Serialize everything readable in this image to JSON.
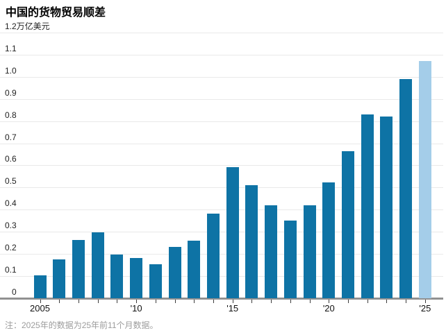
{
  "header": {
    "title": "中国的货物贸易顺差"
  },
  "chart_data": {
    "type": "bar",
    "title": "中国的货物贸易顺差",
    "y_top_label": "1.2万亿美元",
    "unit": "万亿美元",
    "categories": [
      2005,
      2006,
      2007,
      2008,
      2009,
      2010,
      2011,
      2012,
      2013,
      2014,
      2015,
      2016,
      2017,
      2018,
      2019,
      2020,
      2021,
      2022,
      2023,
      2024,
      2025
    ],
    "values": [
      0.102,
      0.177,
      0.264,
      0.298,
      0.196,
      0.182,
      0.155,
      0.231,
      0.259,
      0.383,
      0.593,
      0.51,
      0.42,
      0.35,
      0.421,
      0.524,
      0.665,
      0.83,
      0.822,
      0.99,
      1.07
    ],
    "highlight_year": 2025,
    "x_ticks": [
      {
        "year": 2005,
        "label": "2005"
      },
      {
        "year": 2010,
        "label": "'10"
      },
      {
        "year": 2015,
        "label": "'15"
      },
      {
        "year": 2020,
        "label": "'20"
      },
      {
        "year": 2025,
        "label": "'25"
      }
    ],
    "ylim": [
      0,
      1.2
    ],
    "y_tick_step": 0.1,
    "grid": true,
    "legend": "none",
    "colors": {
      "bar": "#0e73a5",
      "bar_highlight": "#a4cde9",
      "axis": "#919191",
      "gridline": "#e9e9e9",
      "footnote_text": "#9c9c9c"
    }
  },
  "footnote": {
    "text": "注：2025年的数据为25年前11个月数据。"
  }
}
